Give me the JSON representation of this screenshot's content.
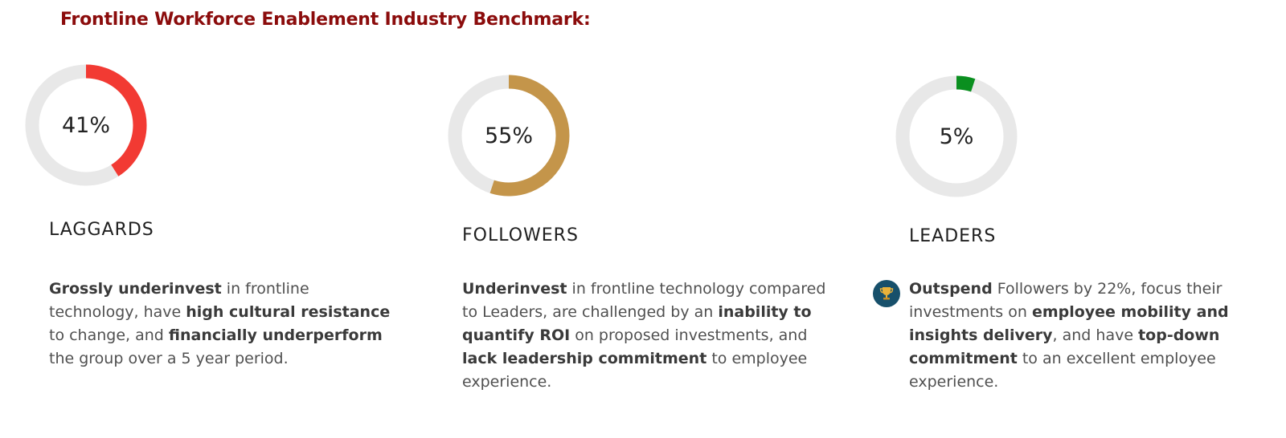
{
  "title": "Frontline Workforce Enablement Industry Benchmark:",
  "chart_data": [
    {
      "type": "pie",
      "donut": true,
      "value": 41,
      "max": 100,
      "label": "41%",
      "category": "LAGGARDS",
      "color": "#f23a33",
      "track_color": "#e8e8e8"
    },
    {
      "type": "pie",
      "donut": true,
      "value": 55,
      "max": 100,
      "label": "55%",
      "category": "FOLLOWERS",
      "color": "#c4954a",
      "track_color": "#e8e8e8"
    },
    {
      "type": "pie",
      "donut": true,
      "value": 5,
      "max": 100,
      "label": "5%",
      "category": "LEADERS",
      "color": "#0a8f1f",
      "track_color": "#e8e8e8"
    }
  ],
  "segments": [
    {
      "name": "LAGGARDS",
      "description": [
        {
          "text": "Grossly underinvest",
          "bold": true
        },
        {
          "text": " in frontline technology, have ",
          "bold": false
        },
        {
          "text": "high cultural resistance",
          "bold": true
        },
        {
          "text": " to change, and ",
          "bold": false
        },
        {
          "text": "financially underperform",
          "bold": true
        },
        {
          "text": " the group over a 5 year period.",
          "bold": false
        }
      ]
    },
    {
      "name": "FOLLOWERS",
      "description": [
        {
          "text": "Underinvest",
          "bold": true
        },
        {
          "text": " in frontline technology compared to Leaders, are challenged by an ",
          "bold": false
        },
        {
          "text": "inability to quantify ROI",
          "bold": true
        },
        {
          "text": " on proposed investments, and ",
          "bold": false
        },
        {
          "text": "lack leadership commitment",
          "bold": true
        },
        {
          "text": " to employee experience.",
          "bold": false
        }
      ]
    },
    {
      "name": "LEADERS",
      "icon": "trophy-icon",
      "description": [
        {
          "text": "Outspend",
          "bold": true
        },
        {
          "text": " Followers by 22%, focus their investments on ",
          "bold": false
        },
        {
          "text": "employee mobility and insights delivery",
          "bold": true
        },
        {
          "text": ", and have ",
          "bold": false
        },
        {
          "text": "top-down commitment",
          "bold": true
        },
        {
          "text": " to an excellent employee experience.",
          "bold": false
        }
      ]
    }
  ]
}
